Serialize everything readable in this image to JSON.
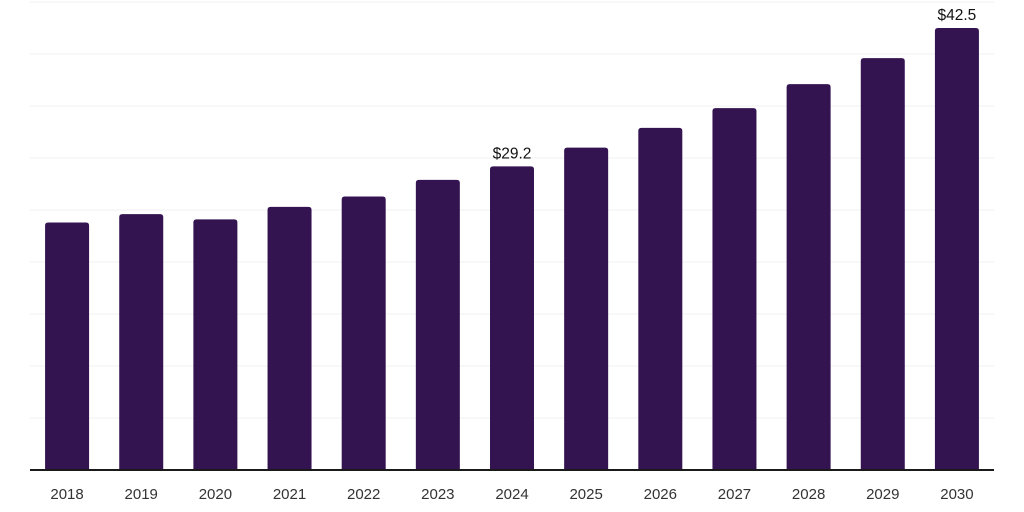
{
  "chart_data": {
    "type": "bar",
    "title": "",
    "xlabel": "",
    "ylabel": "",
    "categories": [
      "2018",
      "2019",
      "2020",
      "2021",
      "2022",
      "2023",
      "2024",
      "2025",
      "2026",
      "2027",
      "2028",
      "2029",
      "2030"
    ],
    "values": [
      23.8,
      24.6,
      24.1,
      25.3,
      26.3,
      27.9,
      29.2,
      31.0,
      32.9,
      34.8,
      37.1,
      39.6,
      42.5
    ],
    "data_labels": [
      "",
      "",
      "",
      "",
      "",
      "",
      "$29.2",
      "",
      "",
      "",
      "",
      "",
      "$42.5"
    ],
    "ylim": [
      0,
      45
    ],
    "gridline_step": 5,
    "grid": true,
    "legend_position": "none",
    "colors": {
      "bar": "#341351",
      "axis_line": "#1a1a1a",
      "gridline": "#f2f2f2",
      "tick_label": "#333333",
      "data_label": "#111111"
    }
  }
}
